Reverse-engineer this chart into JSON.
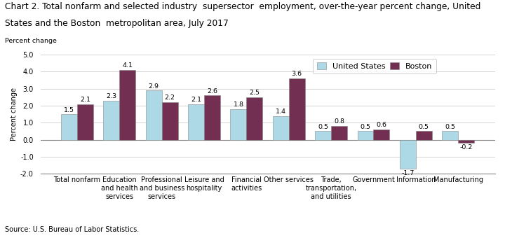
{
  "title_line1": "Chart 2. Total nonfarm and selected industry  supersector  employment, over-the-year percent change, United",
  "title_line2": "States and the Boston  metropolitan area, July 2017",
  "ylabel": "Percent change",
  "source": "Source: U.S. Bureau of Labor Statistics.",
  "categories": [
    "Total nonfarm",
    "Education\nand health\nservices",
    "Professional\nand business\nservices",
    "Leisure and\nhospitality",
    "Financial\nactivities",
    "Other services",
    "Trade,\ntransportation,\nand utilities",
    "Government",
    "Information",
    "Manufacturing"
  ],
  "us_values": [
    1.5,
    2.3,
    2.9,
    2.1,
    1.8,
    1.4,
    0.5,
    0.5,
    -1.7,
    0.5
  ],
  "boston_values": [
    2.1,
    4.1,
    2.2,
    2.6,
    2.5,
    3.6,
    0.8,
    0.6,
    0.5,
    -0.2
  ],
  "us_color": "#add8e6",
  "boston_color": "#722F52",
  "legend_labels": [
    "United States",
    "Boston"
  ],
  "ylim": [
    -2.0,
    5.0
  ],
  "yticks": [
    -2.0,
    -1.0,
    0.0,
    1.0,
    2.0,
    3.0,
    4.0,
    5.0
  ],
  "bar_width": 0.38,
  "title_fontsize": 8.8,
  "label_fontsize": 7.0,
  "tick_fontsize": 7.0,
  "value_fontsize": 6.8,
  "legend_fontsize": 8.0
}
